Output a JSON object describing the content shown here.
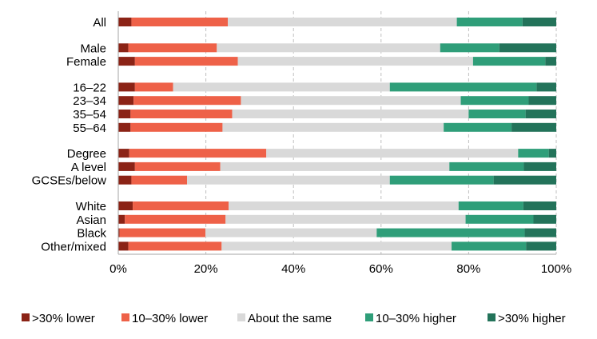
{
  "chart_data": {
    "type": "bar",
    "orientation": "horizontal",
    "stacked": true,
    "title": "",
    "xlabel": "",
    "ylabel": "",
    "xlim": [
      0,
      100
    ],
    "x_ticks": [
      "0%",
      "20%",
      "40%",
      "60%",
      "80%",
      "100%"
    ],
    "grid": "vertical dashed",
    "legend_position": "bottom",
    "colors": {
      ">30% lower": "#8b2316",
      "10–30% lower": "#ee6148",
      "About the same": "#d9d9d9",
      "10–30% higher": "#2f9e79",
      ">30% higher": "#23735a"
    },
    "categories": [
      "All",
      "Male",
      "Female",
      "16–22",
      "23–34",
      "35–54",
      "55–64",
      "Degree",
      "A level",
      "GCSEs/below",
      "White",
      "Asian",
      "Black",
      "Other/mixed"
    ],
    "groups": [
      [
        0
      ],
      [
        1,
        2
      ],
      [
        3,
        4,
        5,
        6
      ],
      [
        7,
        8,
        9
      ],
      [
        10,
        11,
        12,
        13
      ]
    ],
    "series": [
      {
        "name": ">30% lower",
        "values": [
          3.0,
          2.3,
          3.8,
          3.8,
          3.5,
          2.8,
          2.8,
          2.5,
          3.8,
          3.0,
          3.3,
          1.5,
          0.3,
          2.3
        ]
      },
      {
        "name": "10–30% lower",
        "values": [
          22.0,
          20.2,
          23.5,
          8.7,
          24.5,
          23.2,
          21.0,
          31.3,
          19.5,
          12.7,
          21.9,
          23.0,
          19.6,
          21.3
        ]
      },
      {
        "name": "About the same",
        "values": [
          52.3,
          51.0,
          53.7,
          49.5,
          50.2,
          54.0,
          50.5,
          57.5,
          52.3,
          46.3,
          52.5,
          54.8,
          39.1,
          52.5
        ]
      },
      {
        "name": "10–30% higher",
        "values": [
          15.0,
          13.5,
          16.5,
          33.5,
          15.5,
          13.0,
          15.5,
          7.0,
          17.0,
          23.7,
          14.8,
          15.5,
          33.8,
          17.0
        ]
      },
      {
        "name": ">30% higher",
        "values": [
          7.7,
          13.0,
          2.5,
          4.5,
          6.3,
          7.0,
          10.2,
          1.7,
          7.4,
          14.3,
          7.5,
          5.2,
          7.2,
          6.9
        ]
      }
    ]
  }
}
